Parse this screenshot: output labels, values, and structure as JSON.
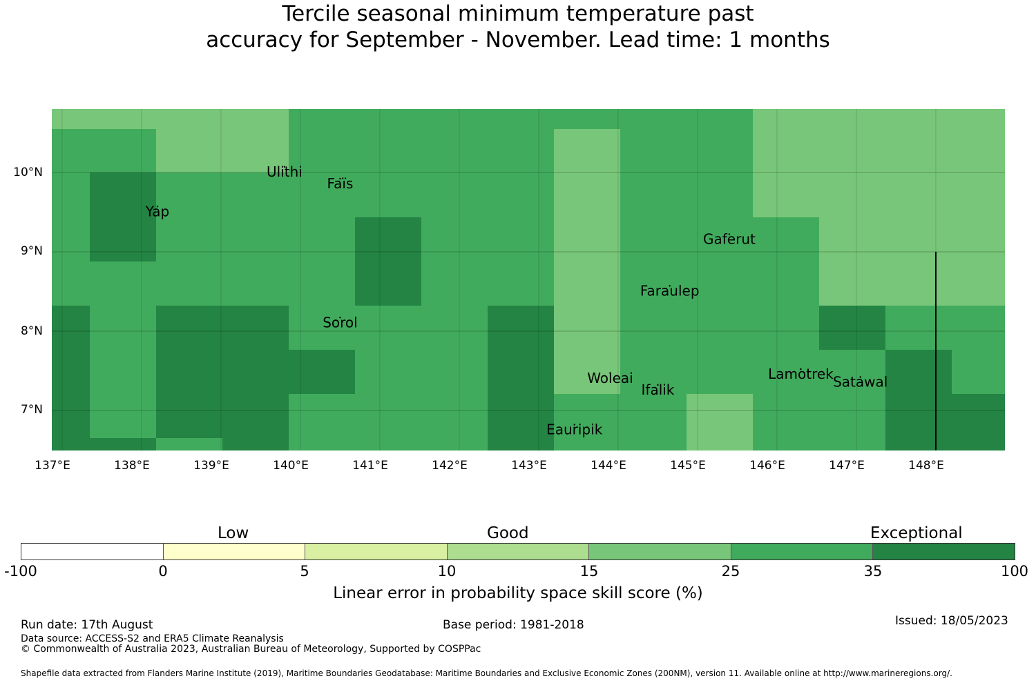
{
  "title": {
    "line1": "Tercile seasonal minimum temperature past",
    "line2": "accuracy for September - November. Lead time: 1 months"
  },
  "map": {
    "lon_range": [
      137.0,
      149.0
    ],
    "lat_range": [
      6.5,
      10.8
    ],
    "x_ticks": [
      "137°E",
      "138°E",
      "139°E",
      "140°E",
      "141°E",
      "142°E",
      "143°E",
      "144°E",
      "145°E",
      "146°E",
      "147°E",
      "148°E"
    ],
    "y_ticks": [
      "10°N",
      "9°N",
      "8°N",
      "7°N"
    ],
    "grid": true,
    "boundary_line_lon": 148.0,
    "boundary_line_lat_range": [
      6.5,
      9.0
    ],
    "cell_levels": [
      "5666677777",
      "5677666677",
      "5566677766",
      "5566677776",
      "6666667666",
      "6667766666",
      "6666666667",
      "6666677777",
      "6555555666",
      "6666666667",
      "6666666555",
      "5556666666",
      "5555576666",
      "5555567777",
      "5555566777",
      "5555557776",
      "6666667777",
      "6666667777",
      "6666667777",
      "6555567777",
      "7666666667",
      "7666666677",
      "7666666667"
    ],
    "places": [
      {
        "name": "Ulithi",
        "lon": 139.8,
        "lat": 9.95
      },
      {
        "name": "Faïs",
        "lon": 140.5,
        "lat": 9.8
      },
      {
        "name": "Yap",
        "lon": 138.2,
        "lat": 9.45
      },
      {
        "name": "Gaferut",
        "lon": 145.4,
        "lat": 9.1
      },
      {
        "name": "Faraulep",
        "lon": 144.65,
        "lat": 8.45
      },
      {
        "name": "Sorol",
        "lon": 140.5,
        "lat": 8.05
      },
      {
        "name": "Woleai",
        "lon": 143.9,
        "lat": 7.35
      },
      {
        "name": "Ifalik",
        "lon": 144.5,
        "lat": 7.2
      },
      {
        "name": "Lamotrek",
        "lon": 146.3,
        "lat": 7.4
      },
      {
        "name": "Satawal",
        "lon": 147.05,
        "lat": 7.3
      },
      {
        "name": "Eauripik",
        "lon": 143.45,
        "lat": 6.7
      }
    ]
  },
  "colorbar": {
    "categories": [
      "Low",
      "Good",
      "Exceptional"
    ],
    "ticks": [
      "-100",
      "0",
      "5",
      "10",
      "15",
      "25",
      "35",
      "100"
    ],
    "colors": [
      "#ffffff",
      "#ffffcc",
      "#d9f0a3",
      "#addd8e",
      "#78c679",
      "#41ab5d",
      "#238443"
    ],
    "label": "Linear error in probability space skill score (%)"
  },
  "footer": {
    "run_date": "Run date: 17th August",
    "base_period": "Base period: 1981-2018",
    "issued": "Issued: 18/05/2023",
    "data_source": "Data source: ACCESS-S2 and ERA5 Climate Reanalysis",
    "copyright": "© Commonwealth of Australia 2023, Australian Bureau of Meteorology, Supported by COSPPac",
    "shapefile": "Shapefile data extracted from Flanders Marine Institute (2019), Maritime Boundaries Geodatabase: Maritime Boundaries and Exclusive Economic Zones (200NM), version 11. Available online at http://www.marineregions.org/."
  }
}
